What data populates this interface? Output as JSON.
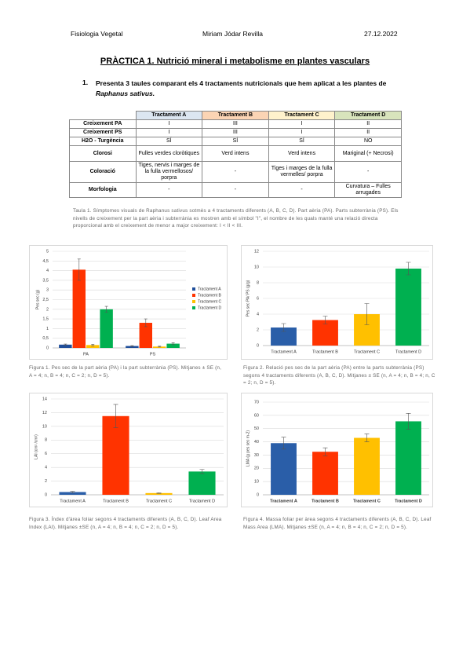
{
  "header": {
    "course": "Fisiologia Vegetal",
    "author": "Miriam Jódar Revilla",
    "date": "27.12.2022"
  },
  "title": "PRÀCTICA 1. Nutrició mineral i metabolisme en plantes vasculars",
  "question": {
    "number": "1.",
    "text": "Presenta 3 taules comparant els 4 tractaments nutricionals que hem aplicat a les plantes de",
    "species": "Raphanus sativus."
  },
  "table": {
    "header": [
      "Tractament A",
      "Tractament B",
      "Tractament C",
      "Tractament D"
    ],
    "header_colors": [
      "#dce6f1",
      "#fbd4b4",
      "#fff2cc",
      "#d8e4bc"
    ],
    "rows": [
      [
        "Creixement PA",
        "I",
        "III",
        "I",
        "II"
      ],
      [
        "Creixement PS",
        "I",
        "III",
        "I",
        "II"
      ],
      [
        "H2O - Turgència",
        "SÍ",
        "SÍ",
        "SÍ",
        "NO"
      ],
      [
        "Clorosi",
        "Fulles verdes cloròtiques",
        "Verd intens",
        "Verd intens",
        "Mariginal (+ Necrosi)"
      ],
      [
        "Coloració",
        "Tiges, nervis i marges de la fulla vermellosos/ porpra",
        "-",
        "Tiges i marges de la fulla vermelles/ porpra",
        "-"
      ],
      [
        "Morfologia",
        "-",
        "-",
        "-",
        "Curvatura – Fulles arrugades"
      ]
    ]
  },
  "table_caption": "Taula 1. Símptomes visuals de Raphanus sativus sotmès a 4 tractaments diferents (A, B, C, D). Part aèria (PA). Parts subterrània (PS). Els nivells de creixement per la part aèria i subterrània es mostren amb el símbol \"I\", el nombre de les quals manté una relació directa proporcional amb el creixement de menor a major creixement: I < II < III.",
  "chart_data": [
    {
      "type": "grouped-bar",
      "y_label": "Pes sec (g)",
      "categories": [
        "PA",
        "PS"
      ],
      "series": [
        {
          "name": "Tractament A",
          "color": "#1f4e9a",
          "values": [
            0.17,
            0.1
          ],
          "errors": [
            0.03,
            0.02
          ]
        },
        {
          "name": "Tractament B",
          "color": "#ff3300",
          "values": [
            4.05,
            1.3
          ],
          "errors": [
            0.55,
            0.2
          ]
        },
        {
          "name": "Tractament C",
          "color": "#ffc000",
          "values": [
            0.15,
            0.07
          ],
          "errors": [
            0.04,
            0.02
          ]
        },
        {
          "name": "Tractament D",
          "color": "#00b050",
          "values": [
            2.0,
            0.22
          ],
          "errors": [
            0.15,
            0.05
          ]
        }
      ],
      "ylim": [
        0,
        5
      ],
      "yticks": [
        0,
        {
          "value": 0.5,
          "label": "0,5"
        },
        1,
        {
          "value": 1.5,
          "label": "1,5"
        },
        2,
        {
          "value": 2.5,
          "label": "2,5"
        },
        3,
        {
          "value": 3.5,
          "label": "3,5"
        },
        4,
        {
          "value": 4.5,
          "label": "4,5"
        },
        5
      ],
      "grid": true,
      "legend": "right"
    },
    {
      "type": "bar",
      "y_label": "Pes sec PA/ PS (g/g)",
      "categories": [
        "Tractament A",
        "Tractament B",
        "Tractament C",
        "Tractament D"
      ],
      "values": [
        2.3,
        3.25,
        4.0,
        9.8
      ],
      "errors": [
        0.5,
        0.5,
        1.35,
        0.8
      ],
      "colors": [
        "#2a5ea8",
        "#ff3300",
        "#ffc000",
        "#00b050"
      ],
      "ylim": [
        0,
        12
      ],
      "yticks": [
        0,
        2,
        4,
        6,
        8,
        10,
        12
      ],
      "grid": true
    },
    {
      "type": "bar",
      "y_label": "LAI (cm² /cm²)",
      "categories": [
        "Tractament A",
        "Tractament B",
        "Tractament C",
        "Tractament D"
      ],
      "values": [
        0.4,
        11.5,
        0.25,
        3.4
      ],
      "errors": [
        0.1,
        1.7,
        0.05,
        0.3
      ],
      "colors": [
        "#2a5ea8",
        "#ff3300",
        "#ffc000",
        "#00b050"
      ],
      "ylim": [
        0,
        14
      ],
      "yticks": [
        0,
        2,
        4,
        6,
        8,
        10,
        12,
        14
      ],
      "grid": true
    },
    {
      "type": "bar",
      "y_label": "LMA (g pes sec m-2)",
      "categories": [
        "Tractament A",
        "Tractament B",
        "Tractament C",
        "Tractament D"
      ],
      "values": [
        39,
        32.5,
        43,
        55.5
      ],
      "errors": [
        4.5,
        3,
        3,
        6
      ],
      "colors": [
        "#2a5ea8",
        "#ff3300",
        "#ffc000",
        "#00b050"
      ],
      "ylim": [
        0,
        70
      ],
      "yticks": [
        0,
        10,
        20,
        30,
        40,
        50,
        60,
        70
      ],
      "grid": true,
      "bold_categories": true
    }
  ],
  "figure_captions": [
    "Figura 1. Pes sec de la part aèria (PA) i la part subterrània (PS). Mitjanes ± SE (n, A = 4; n, B = 4; n, C = 2; n, D = 5).",
    "Figura 2. Relació pes sec de la part aèria (PA) entre la parts subterrània (PS) segons 4 tractaments diferents (A, B, C, D). Mitjanes ± SE (n, A = 4; n, B = 4; n, C = 2; n, D = 5).",
    "Figura 3. Índex d'àrea foliar segons 4 tractaments diferents (A, B, C, D). Leaf Area Index (LAI). Mitjanes ±SE (n, A = 4; n, B = 4; n, C = 2; n, D = 5).",
    "Figura 4. Massa foliar per àrea segons 4 tractaments diferents (A, B, C, D). Leaf Mass Area (LMA). Mitjanes ±SE (n, A = 4; n, B = 4; n, C = 2; n, D = 5)."
  ]
}
